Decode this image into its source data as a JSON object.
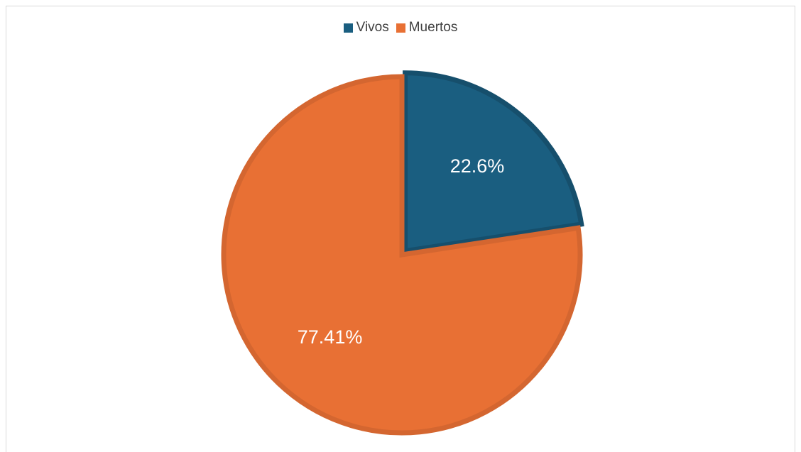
{
  "chart_data": {
    "type": "pie",
    "title": "",
    "categories": [
      "Vivos",
      "Muertos"
    ],
    "values": [
      22.6,
      77.41
    ],
    "data_labels": [
      "22.6%",
      "77.41%"
    ],
    "colors": [
      "#1a5e80",
      "#e87034"
    ],
    "edge_colors": [
      "#164f6c",
      "#d46630"
    ],
    "legend": {
      "position": "top",
      "entries": [
        "Vivos",
        "Muertos"
      ]
    },
    "exploded_slice": "Vivos"
  }
}
